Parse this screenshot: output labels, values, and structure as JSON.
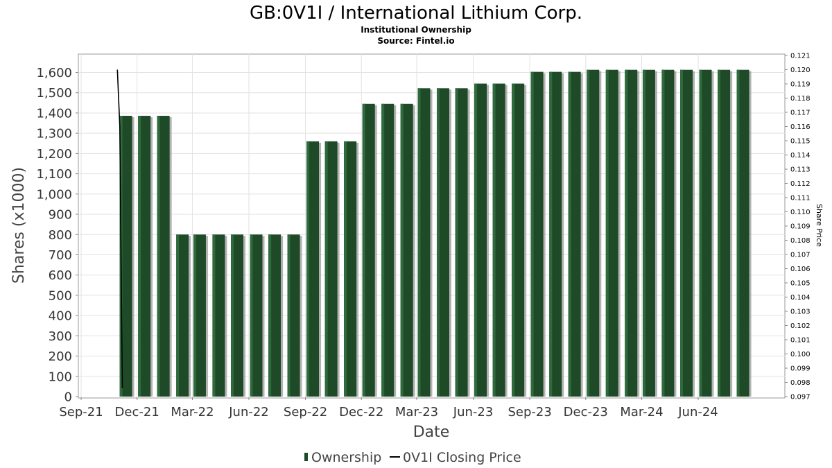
{
  "chart_data": {
    "type": "bar",
    "title": "GB:0V1I / International Lithium Corp.",
    "subtitle_lines": [
      "Institutional Ownership",
      "Source: Fintel.io"
    ],
    "xlabel": "Date",
    "ylabel": "Shares (x1000)",
    "y2label": "Share Price",
    "ylim": [
      0,
      1700
    ],
    "y2lim": [
      0.097,
      0.121
    ],
    "yticks": [
      0,
      100,
      200,
      300,
      400,
      500,
      600,
      700,
      800,
      900,
      1000,
      1100,
      1200,
      1300,
      1400,
      1500,
      1600
    ],
    "ytick_labels": [
      "0",
      "100",
      "200",
      "300",
      "400",
      "500",
      "600",
      "700",
      "800",
      "900",
      "1,000",
      "1,100",
      "1,200",
      "1,300",
      "1,400",
      "1,500",
      "1,600"
    ],
    "y2ticks": [
      0.097,
      0.098,
      0.099,
      0.1,
      0.101,
      0.102,
      0.103,
      0.104,
      0.105,
      0.106,
      0.107,
      0.108,
      0.109,
      0.11,
      0.111,
      0.112,
      0.113,
      0.114,
      0.115,
      0.116,
      0.117,
      0.118,
      0.119,
      0.12,
      0.121
    ],
    "y2tick_labels": [
      "0.097",
      "0.098",
      "0.099",
      "0.100",
      "0.101",
      "0.102",
      "0.103",
      "0.104",
      "0.105",
      "0.106",
      "0.107",
      "0.108",
      "0.109",
      "0.110",
      "0.111",
      "0.112",
      "0.113",
      "0.114",
      "0.115",
      "0.116",
      "0.117",
      "0.118",
      "0.119",
      "0.120",
      "0.121"
    ],
    "xlim": [
      "2021-09-01",
      "2024-10-20"
    ],
    "xticks": [
      "2021-09-01",
      "2021-12-01",
      "2022-03-01",
      "2022-06-01",
      "2022-09-01",
      "2022-12-01",
      "2023-03-01",
      "2023-06-01",
      "2023-09-01",
      "2023-12-01",
      "2024-03-01",
      "2024-06-01"
    ],
    "xtick_labels": [
      "Sep-21",
      "Dec-21",
      "Mar-22",
      "Jun-22",
      "Sep-22",
      "Dec-22",
      "Mar-23",
      "Jun-23",
      "Sep-23",
      "Dec-23",
      "Mar-24",
      "Jun-24"
    ],
    "grid": true,
    "legend_position": "bottom-center",
    "series": [
      {
        "name": "Ownership",
        "type": "bar",
        "color": "#1e4a28",
        "x": [
          "2021-11-01",
          "2021-12-01",
          "2022-01-01",
          "2022-02-01",
          "2022-03-01",
          "2022-04-01",
          "2022-05-01",
          "2022-06-01",
          "2022-07-01",
          "2022-08-01",
          "2022-09-01",
          "2022-10-01",
          "2022-11-01",
          "2022-12-01",
          "2023-01-01",
          "2023-02-01",
          "2023-03-01",
          "2023-04-01",
          "2023-05-01",
          "2023-06-01",
          "2023-07-01",
          "2023-08-01",
          "2023-09-01",
          "2023-10-01",
          "2023-11-01",
          "2023-12-01",
          "2024-01-01",
          "2024-02-01",
          "2024-03-01",
          "2024-04-01",
          "2024-05-01",
          "2024-06-01",
          "2024-07-01",
          "2024-08-01"
        ],
        "values": [
          1386,
          1386,
          1386,
          800,
          800,
          800,
          800,
          800,
          800,
          800,
          1260,
          1260,
          1260,
          1445,
          1445,
          1445,
          1522,
          1522,
          1522,
          1545,
          1545,
          1545,
          1603,
          1603,
          1603,
          1613,
          1613,
          1613,
          1613,
          1613,
          1613,
          1613,
          1613,
          1613
        ]
      },
      {
        "name": "0V1I Closing Price",
        "type": "line",
        "color": "#000000",
        "x": [
          "2021-10-30",
          "2021-11-03",
          "2021-11-07"
        ],
        "values": [
          0.12,
          0.116,
          0.0976
        ]
      }
    ]
  }
}
